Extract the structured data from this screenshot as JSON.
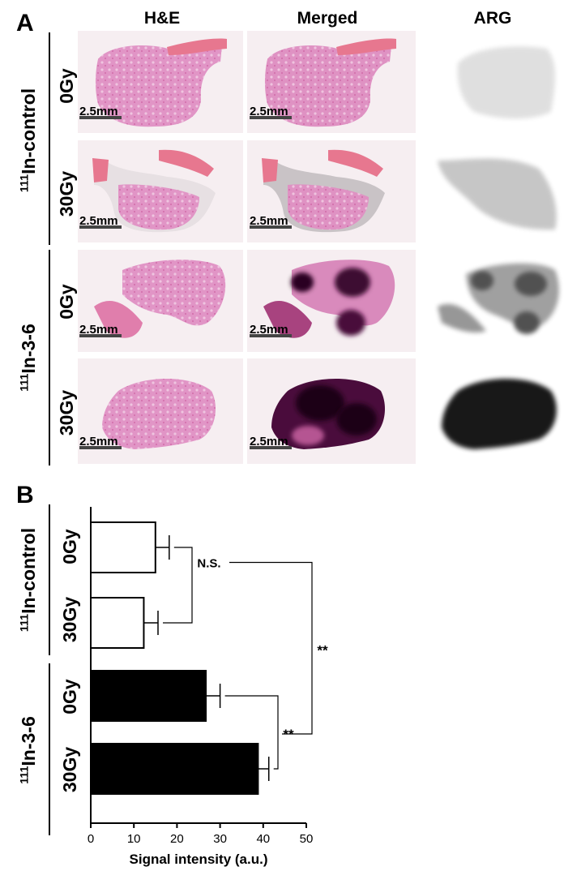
{
  "panel_a": {
    "letter": "A",
    "columns": [
      "H&E",
      "Merged",
      "ARG"
    ],
    "scale_bar_label": "2.5mm",
    "groups": [
      {
        "prefix": "111",
        "name": "In-control",
        "rows": [
          "0Gy",
          "30Gy"
        ]
      },
      {
        "prefix": "111",
        "name": "In-3-6",
        "rows": [
          "0Gy",
          "30Gy"
        ]
      }
    ],
    "arg_levels": [
      0.12,
      0.22,
      0.68,
      0.9
    ]
  },
  "panel_b": {
    "letter": "B",
    "significance": {
      "ns_label": "N.S.",
      "star_label": "**"
    }
  },
  "chart_data": {
    "type": "bar",
    "orientation": "horizontal",
    "categories": [
      "0Gy",
      "30Gy",
      "0Gy",
      "30Gy"
    ],
    "groups": [
      {
        "prefix": "111",
        "name": "In-control",
        "rows": [
          "0Gy",
          "30Gy"
        ]
      },
      {
        "prefix": "111",
        "name": "In-3-6",
        "rows": [
          "0Gy",
          "30Gy"
        ]
      }
    ],
    "values": [
      15,
      12.3,
      26.7,
      38.8
    ],
    "errors": [
      3.2,
      3.3,
      3.3,
      2.5
    ],
    "bar_colors": [
      "#ffffff",
      "#ffffff",
      "#000000",
      "#000000"
    ],
    "xlabel": "Signal intensity (a.u.)",
    "xlim": [
      0,
      50
    ],
    "xticks": [
      0,
      10,
      20,
      30,
      40,
      50
    ],
    "comparisons": [
      {
        "between": [
          "0Gy",
          "30Gy"
        ],
        "group": "In-control",
        "label": "N.S."
      },
      {
        "between": [
          "0Gy",
          "30Gy"
        ],
        "group": "In-3-6",
        "label": "**"
      },
      {
        "between": [
          "In-control",
          "In-3-6"
        ],
        "label": "**"
      }
    ]
  }
}
